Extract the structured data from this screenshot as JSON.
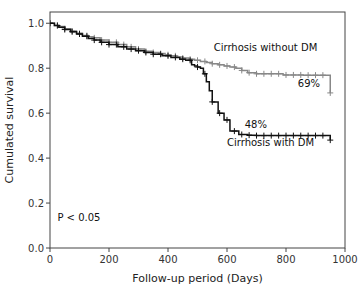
{
  "chart_data": {
    "type": "line",
    "xlabel": "Follow-up period (Days)",
    "ylabel": "Cumulated survival",
    "xlim": [
      0,
      1000
    ],
    "ylim": [
      0.0,
      1.05
    ],
    "xticks": [
      0,
      200,
      400,
      600,
      800,
      1000
    ],
    "yticks": [
      {
        "value": 0.0,
        "label": "0.0"
      },
      0.2,
      0.4,
      0.6,
      0.8,
      {
        "value": 1.0,
        "label": "1.0"
      }
    ],
    "grid": false,
    "series": [
      {
        "type": "line",
        "line_style": "step",
        "color": "#888888",
        "x": [
          0,
          15,
          30,
          50,
          70,
          90,
          110,
          130,
          150,
          170,
          200,
          230,
          260,
          290,
          320,
          350,
          370,
          390,
          410,
          430,
          450,
          470,
          490,
          510,
          530,
          550,
          570,
          590,
          610,
          630,
          650,
          670,
          700,
          730,
          760,
          790,
          820,
          840,
          860,
          880,
          900,
          950
        ],
        "values": [
          1.0,
          0.99,
          0.985,
          0.975,
          0.965,
          0.955,
          0.945,
          0.94,
          0.935,
          0.925,
          0.915,
          0.905,
          0.895,
          0.885,
          0.875,
          0.87,
          0.865,
          0.86,
          0.855,
          0.85,
          0.845,
          0.84,
          0.835,
          0.83,
          0.825,
          0.82,
          0.815,
          0.81,
          0.805,
          0.8,
          0.79,
          0.78,
          0.775,
          0.775,
          0.775,
          0.77,
          0.77,
          0.77,
          0.769,
          0.769,
          0.769,
          0.69
        ]
      },
      {
        "type": "scatter",
        "marker": "plus",
        "color": "#888888",
        "x": [
          0,
          25,
          50,
          75,
          100,
          125,
          150,
          175,
          200,
          225,
          250,
          275,
          300,
          325,
          350,
          375,
          400,
          425,
          450,
          475,
          500,
          525,
          550,
          575,
          600,
          625,
          650,
          675,
          700,
          725,
          750,
          775,
          800,
          825,
          850,
          875,
          900,
          925,
          950
        ],
        "values": [
          1.0,
          0.99,
          0.975,
          0.965,
          0.955,
          0.945,
          0.935,
          0.925,
          0.915,
          0.915,
          0.905,
          0.895,
          0.885,
          0.875,
          0.87,
          0.865,
          0.86,
          0.855,
          0.845,
          0.84,
          0.835,
          0.83,
          0.82,
          0.815,
          0.81,
          0.805,
          0.79,
          0.78,
          0.775,
          0.775,
          0.775,
          0.775,
          0.77,
          0.77,
          0.77,
          0.769,
          0.769,
          0.769,
          0.69
        ]
      },
      {
        "type": "line",
        "line_style": "step",
        "color": "#111111",
        "x": [
          0,
          15,
          30,
          50,
          70,
          90,
          110,
          130,
          150,
          170,
          200,
          230,
          260,
          290,
          320,
          350,
          380,
          410,
          440,
          460,
          480,
          490,
          500,
          510,
          520,
          530,
          540,
          550,
          570,
          590,
          610,
          640,
          670,
          700,
          750,
          800,
          850,
          900,
          950
        ],
        "values": [
          1.0,
          0.99,
          0.982,
          0.972,
          0.962,
          0.952,
          0.942,
          0.932,
          0.925,
          0.915,
          0.905,
          0.895,
          0.885,
          0.878,
          0.87,
          0.862,
          0.855,
          0.848,
          0.84,
          0.835,
          0.815,
          0.81,
          0.805,
          0.8,
          0.775,
          0.74,
          0.7,
          0.65,
          0.6,
          0.57,
          0.52,
          0.505,
          0.502,
          0.5,
          0.5,
          0.5,
          0.5,
          0.5,
          0.48
        ]
      },
      {
        "type": "scatter",
        "marker": "plus",
        "color": "#111111",
        "x": [
          0,
          25,
          50,
          75,
          100,
          125,
          150,
          175,
          200,
          225,
          250,
          275,
          300,
          325,
          350,
          375,
          400,
          425,
          450,
          475,
          500,
          525,
          550,
          575,
          600,
          625,
          650,
          675,
          700,
          725,
          750,
          775,
          800,
          825,
          850,
          875,
          900,
          925,
          950
        ],
        "values": [
          1.0,
          0.99,
          0.972,
          0.962,
          0.952,
          0.942,
          0.925,
          0.915,
          0.905,
          0.905,
          0.895,
          0.885,
          0.878,
          0.87,
          0.862,
          0.862,
          0.855,
          0.848,
          0.84,
          0.835,
          0.805,
          0.775,
          0.65,
          0.6,
          0.57,
          0.52,
          0.505,
          0.502,
          0.5,
          0.5,
          0.5,
          0.5,
          0.5,
          0.5,
          0.5,
          0.5,
          0.5,
          0.5,
          0.48
        ]
      }
    ],
    "annotations": [
      {
        "text": "Cirrhosis without DM",
        "x": 555,
        "y": 0.875
      },
      {
        "text": "69%",
        "x": 840,
        "y": 0.715
      },
      {
        "text": "48%",
        "x": 660,
        "y": 0.535
      },
      {
        "text": "Cirrhosis with DM",
        "x": 600,
        "y": 0.455
      },
      {
        "text": "P < 0.05",
        "x": 25,
        "y": 0.12
      }
    ]
  }
}
